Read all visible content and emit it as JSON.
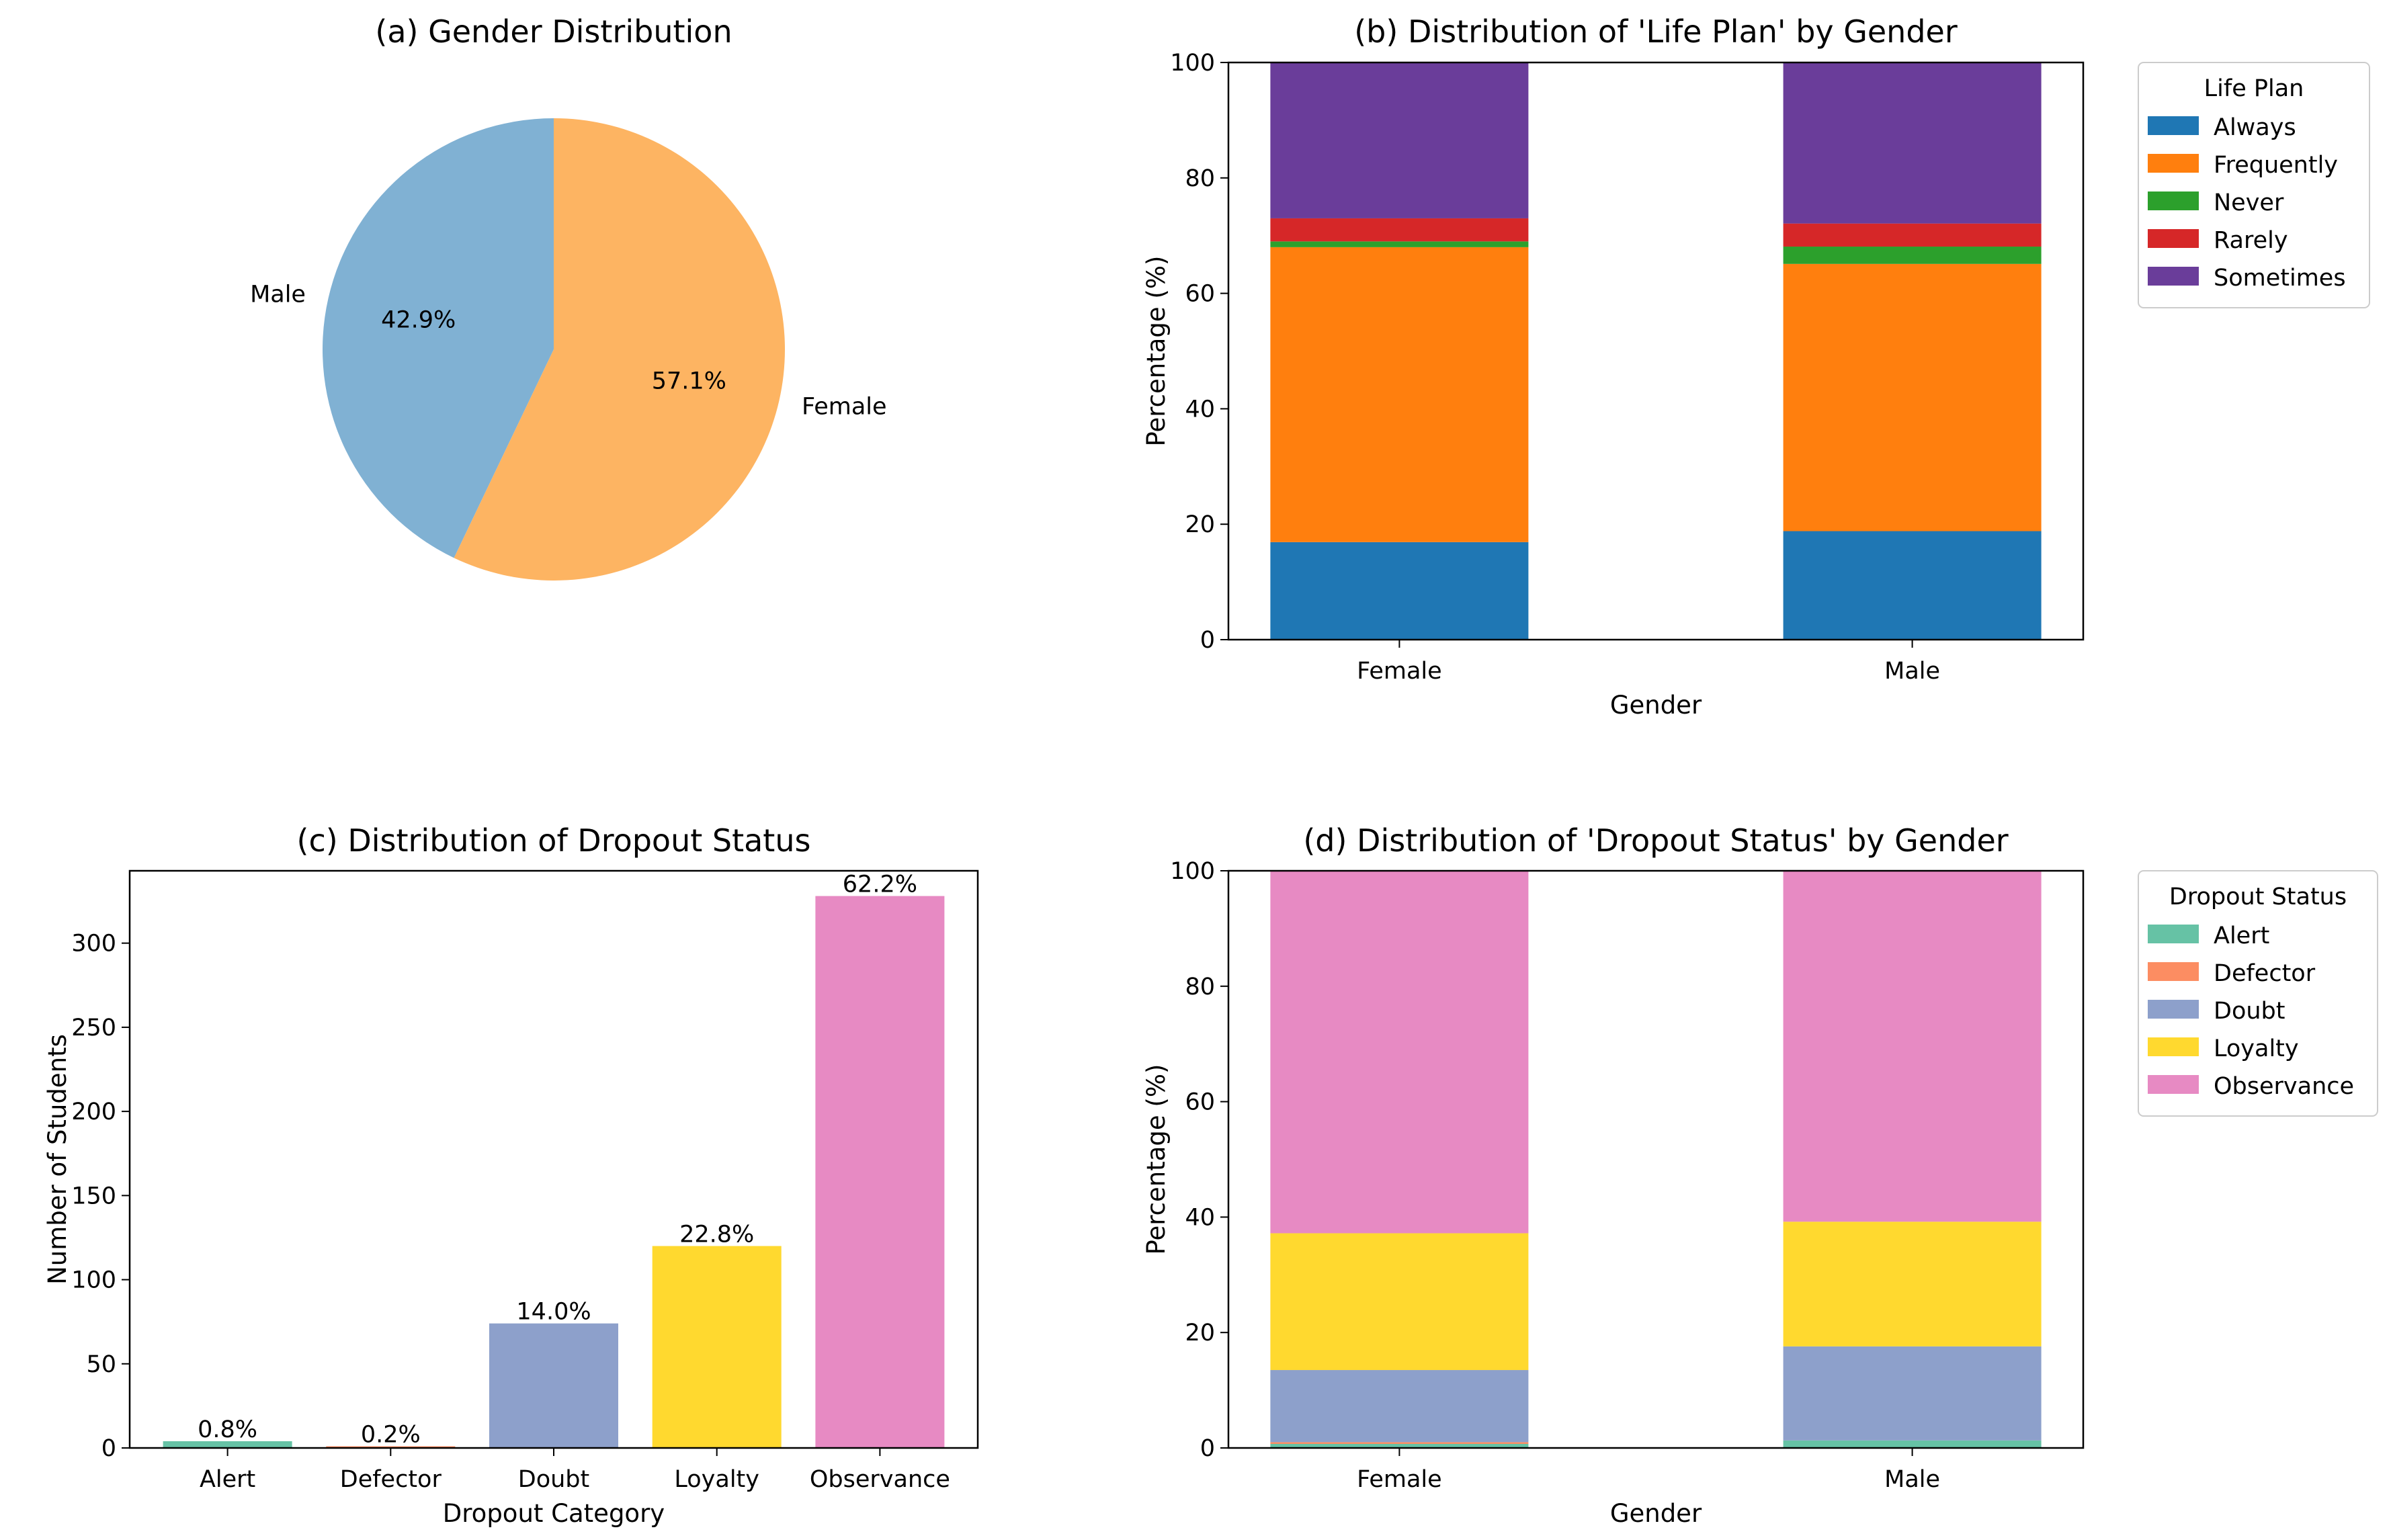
{
  "chart_data": [
    {
      "type": "pie",
      "title": "(a) Gender Distribution",
      "slices": [
        {
          "label": "Male",
          "value": 42.9,
          "pct_label": "42.9%",
          "color": "#80b1d3"
        },
        {
          "label": "Female",
          "value": 57.1,
          "pct_label": "57.1%",
          "color": "#fdb462"
        }
      ]
    },
    {
      "type": "bar",
      "stacked": true,
      "title": "(b) Distribution of 'Life Plan' by Gender",
      "xlabel": "Gender",
      "ylabel": "Percentage (%)",
      "ylim": [
        0,
        100
      ],
      "yticks": [
        0,
        20,
        40,
        60,
        80,
        100
      ],
      "categories": [
        "Female",
        "Male"
      ],
      "legend_title": "Life Plan",
      "legend_position": "outside right",
      "series": [
        {
          "name": "Always",
          "color": "#1f77b4",
          "values": [
            16.9,
            18.8
          ]
        },
        {
          "name": "Frequently",
          "color": "#ff7f0e",
          "values": [
            51.1,
            46.3
          ]
        },
        {
          "name": "Never",
          "color": "#2ca02c",
          "values": [
            1.0,
            3.0
          ]
        },
        {
          "name": "Rarely",
          "color": "#d62728",
          "values": [
            4.0,
            4.0
          ]
        },
        {
          "name": "Sometimes",
          "color": "#6a3d9a",
          "values": [
            27.0,
            27.9
          ]
        }
      ]
    },
    {
      "type": "bar",
      "title": "(c) Distribution of Dropout Status",
      "xlabel": "Dropout Category",
      "ylabel": "Number of Students",
      "ylim": [
        0,
        343
      ],
      "yticks": [
        0,
        50,
        100,
        150,
        200,
        250,
        300
      ],
      "categories": [
        "Alert",
        "Defector",
        "Doubt",
        "Loyalty",
        "Observance"
      ],
      "values": [
        4,
        1,
        74,
        120,
        328
      ],
      "data_labels": [
        "0.8%",
        "0.2%",
        "14.0%",
        "22.8%",
        "62.2%"
      ],
      "colors": [
        "#66c2a5",
        "#fc8d62",
        "#8da0cb",
        "#ffd92f",
        "#e78ac3"
      ]
    },
    {
      "type": "bar",
      "stacked": true,
      "title": "(d) Distribution of 'Dropout Status' by Gender",
      "xlabel": "Gender",
      "ylabel": "Percentage (%)",
      "ylim": [
        0,
        100
      ],
      "yticks": [
        0,
        20,
        40,
        60,
        80,
        100
      ],
      "categories": [
        "Female",
        "Male"
      ],
      "legend_title": "Dropout Status",
      "legend_position": "outside right",
      "series": [
        {
          "name": "Alert",
          "color": "#66c2a5",
          "values": [
            0.7,
            1.3
          ]
        },
        {
          "name": "Defector",
          "color": "#fc8d62",
          "values": [
            0.3,
            0.0
          ]
        },
        {
          "name": "Doubt",
          "color": "#8da0cb",
          "values": [
            12.5,
            16.3
          ]
        },
        {
          "name": "Loyalty",
          "color": "#ffd92f",
          "values": [
            23.7,
            21.6
          ]
        },
        {
          "name": "Observance",
          "color": "#e78ac3",
          "values": [
            62.8,
            60.8
          ]
        }
      ]
    }
  ]
}
